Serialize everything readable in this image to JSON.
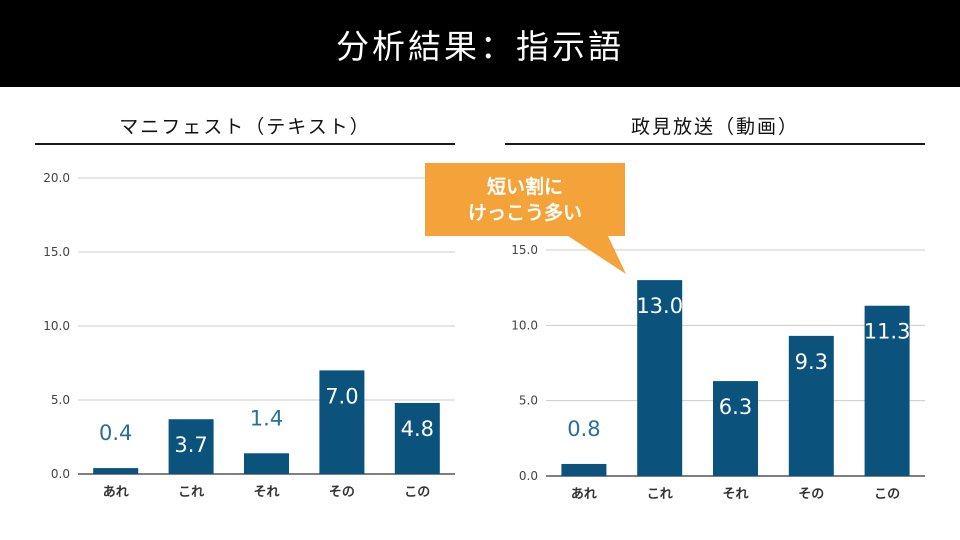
{
  "header": {
    "title": "分析結果：指示語"
  },
  "panels": [
    {
      "title": "マニフェスト（テキスト）"
    },
    {
      "title": "政見放送（動画）"
    }
  ],
  "callout": {
    "line1": "短い割に",
    "line2": "けっこう多い"
  },
  "colors": {
    "bar": "#0b527d",
    "label_outside": "#2a6f97",
    "label_inside": "#ffffff",
    "callout": "#f4a23a"
  },
  "chart_data": [
    {
      "type": "bar",
      "title": "マニフェスト（テキスト）",
      "categories": [
        "あれ",
        "これ",
        "それ",
        "その",
        "この"
      ],
      "values": [
        0.4,
        3.7,
        1.4,
        7.0,
        4.8
      ],
      "value_labels": [
        "0.4",
        "3.7",
        "1.4",
        "7.0",
        "4.8"
      ],
      "yticks": [
        "0.0",
        "5.0",
        "10.0",
        "15.0",
        "20.0"
      ],
      "ylim": [
        0,
        20
      ],
      "grid": true
    },
    {
      "type": "bar",
      "title": "政見放送（動画）",
      "categories": [
        "あれ",
        "これ",
        "それ",
        "その",
        "この"
      ],
      "values": [
        0.8,
        13.0,
        6.3,
        9.3,
        11.3
      ],
      "value_labels": [
        "0.8",
        "13.0",
        "6.3",
        "9.3",
        "11.3"
      ],
      "yticks": [
        "0.0",
        "5.0",
        "10.0",
        "15.0"
      ],
      "ylim": [
        0,
        15
      ],
      "grid": true
    }
  ]
}
